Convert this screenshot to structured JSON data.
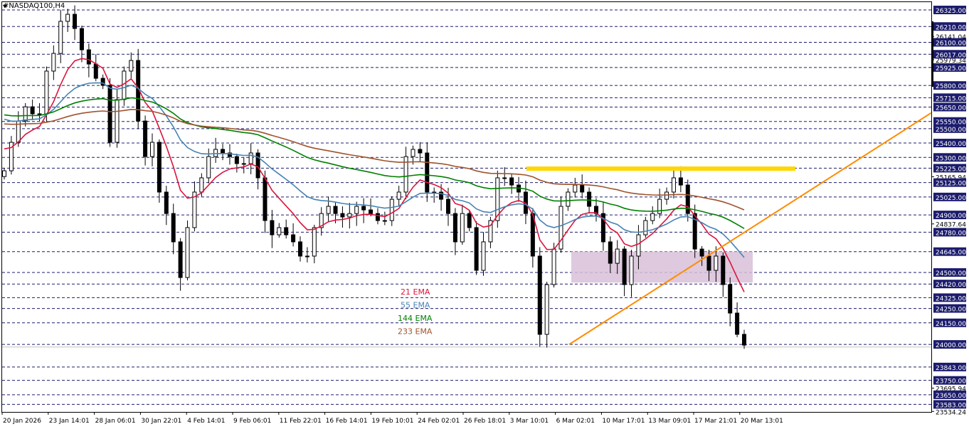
{
  "symbol_title": "#NASDAQ100,H4",
  "chart_data": {
    "type": "candlestick",
    "title": "#NASDAQ100,H4",
    "ylim": [
      23534.24,
      26394
    ],
    "grid": "horizontal dashed at marked levels",
    "colors": {
      "bull_body": "#ffffff",
      "bear_body": "#000000",
      "ema21": "#dc143c",
      "ema55": "#4682b4",
      "ema144": "#008000",
      "ema233": "#a0522d",
      "level_label_bg": "#1c1c6e",
      "resistance": "#ffd700",
      "trendline": "#ff8c00",
      "zone": "#d8bfd8"
    },
    "x_tick_labels": [
      "20 Jan 2026",
      "23 Jan 14:01",
      "28 Jan 06:01",
      "30 Jan 22:01",
      "4 Feb 14:01",
      "9 Feb 06:01",
      "11 Feb 22:01",
      "16 Feb 14:01",
      "19 Feb 10:01",
      "24 Feb 02:01",
      "26 Feb 18:01",
      "3 Mar 10:01",
      "6 Mar 02:01",
      "10 Mar 17:01",
      "13 Mar 09:01",
      "17 Mar 21:01",
      "20 Mar 13:01"
    ],
    "closes": [
      25207,
      25405,
      25553,
      25652,
      25603,
      25603,
      25900,
      26023,
      26246,
      26295,
      26196,
      26048,
      25949,
      25850,
      25801,
      25405,
      25702,
      25900,
      25974,
      25553,
      25306,
      25405,
      25059,
      24910,
      24713,
      24465,
      24812,
      25059,
      25158,
      25306,
      25356,
      25331,
      25306,
      25257,
      25257,
      25331,
      25158,
      24861,
      24762,
      24812,
      24762,
      24713,
      24614,
      24614,
      24812,
      24910,
      24960,
      24910,
      24886,
      24910,
      24960,
      24935,
      24910,
      24861,
      24861,
      25009,
      25059,
      25306,
      25356,
      25331,
      25059,
      25059,
      25009,
      24910,
      24713,
      24910,
      24812,
      24515,
      24713,
      24861,
      25158,
      25158,
      25108,
      25059,
      24910,
      24614,
      24070,
      24416,
      24663,
      24960,
      25059,
      25108,
      25059,
      24960,
      24910,
      24713,
      24564,
      24663,
      24416,
      24614,
      24762,
      24861,
      24910,
      25009,
      25059,
      25158,
      25108,
      24910,
      24663,
      24614,
      24515,
      24614,
      24416,
      24218,
      24070,
      23995
    ],
    "indicators": [
      {
        "name": "21 EMA",
        "period": 21
      },
      {
        "name": "55 EMA",
        "period": 55
      },
      {
        "name": "144 EMA",
        "period": 144
      },
      {
        "name": "233 EMA",
        "period": 233
      }
    ],
    "level_labels": [
      "26325.00",
      "26210.00",
      "26100.00",
      "26017.00",
      "25925.00",
      "25800.00",
      "25715.00",
      "25650.00",
      "25550.00",
      "25500.00",
      "25400.00",
      "25300.00",
      "25225.00",
      "25125.00",
      "25025.00",
      "24900.00",
      "24780.00",
      "24645.00",
      "24500.00",
      "24420.00",
      "24325.00",
      "24250.00",
      "24150.00",
      "24000.00",
      "23843.00",
      "23750.00",
      "23650.00",
      "23583.00"
    ],
    "axis_labels": [
      "26141.04",
      "25979.34",
      "25165.94",
      "24837.64",
      "23695.94",
      "23534.24"
    ],
    "resistance_level": 25222,
    "trendline": {
      "from": [
        "6 Mar 02:01",
        24000
      ],
      "to_price_at_axis": 25610
    },
    "zone": {
      "top": 24645,
      "bottom": 24430
    },
    "bid": 23982
  }
}
